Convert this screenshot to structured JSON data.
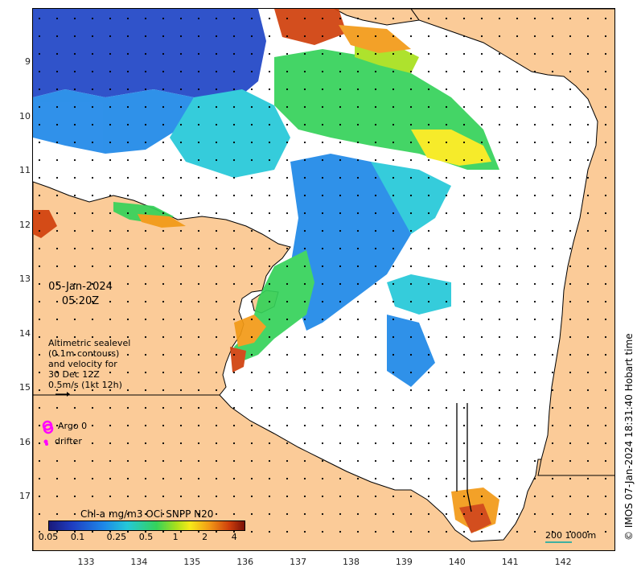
{
  "map": {
    "lat_ticks": [
      "9",
      "10",
      "11",
      "12",
      "13",
      "14",
      "15",
      "16",
      "17"
    ],
    "lon_ticks": [
      "133",
      "134",
      "135",
      "136",
      "137",
      "138",
      "139",
      "140",
      "141",
      "142"
    ],
    "lat_values": [
      -9,
      -10,
      -11,
      -12,
      -13,
      -14,
      -15,
      -16,
      -17
    ],
    "lon_values": [
      133,
      134,
      135,
      136,
      137,
      138,
      139,
      140,
      141,
      142
    ],
    "land_color": "#fbcb98",
    "arrow_color": "#000000"
  },
  "date": "05-Jan-2024",
  "time": "05:20Z",
  "altimetry_note": [
    "Altimetric sealevel",
    "(0.1m contours)",
    "and velocity for",
    "30 Dec 12Z",
    "0.5m/s (1kt 12h)"
  ],
  "legend": {
    "argo_label": "Argo 0",
    "argo_color": "#ff00ff",
    "drifter_label": "drifter",
    "drifter_color": "#ff00ff"
  },
  "colorbar": {
    "title": "Chl-a mg/m3 OCi SNPP N20",
    "tick_labels": [
      "0.05",
      "0.1",
      "0.25",
      "0.5",
      "1",
      "2",
      "4"
    ],
    "tick_values": [
      0.05,
      0.1,
      0.25,
      0.5,
      1,
      2,
      4
    ],
    "range": [
      0.05,
      5
    ],
    "scale": "log"
  },
  "scale_bar": {
    "label": "200  1000m",
    "color": "#40b0a0"
  },
  "copyright": "© IMOS 07-Jan-2024 18:31:40 Hobart time"
}
